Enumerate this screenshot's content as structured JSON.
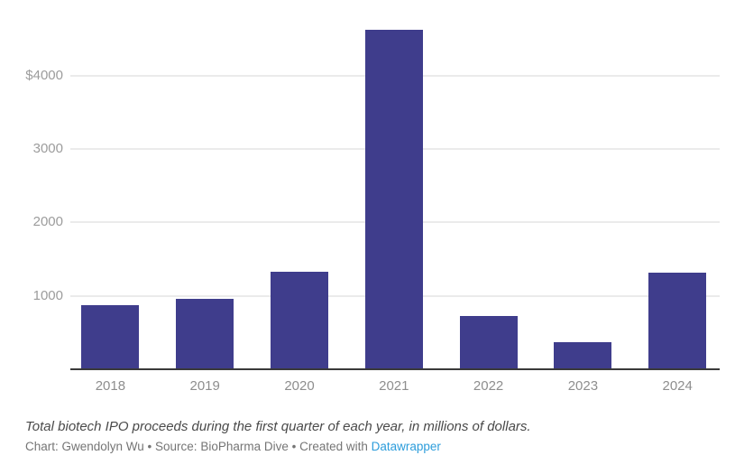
{
  "chart_data": {
    "type": "bar",
    "categories": [
      "2018",
      "2019",
      "2020",
      "2021",
      "2022",
      "2023",
      "2024"
    ],
    "values": [
      870,
      965,
      1325,
      4630,
      730,
      375,
      1315
    ],
    "title": "",
    "xlabel": "",
    "ylabel": "",
    "ylim": [
      0,
      4700
    ],
    "yticks": [
      {
        "v": 4000,
        "label": "$4000"
      },
      {
        "v": 3000,
        "label": "3000"
      },
      {
        "v": 2000,
        "label": "2000"
      },
      {
        "v": 1000,
        "label": "1000"
      }
    ],
    "grid": "horizontal",
    "legend": "none",
    "units": "millions of dollars"
  },
  "footer": {
    "caption": "Total biotech IPO proceeds during the first quarter of each year, in millions of dollars.",
    "byline_prefix": "Chart: Gwendolyn Wu • Source: BioPharma Dive • Created with ",
    "link_label": "Datawrapper"
  },
  "colors": {
    "bar": "#3f3d8c",
    "gridline": "#ebebeb",
    "axis_line": "#3a3a3a",
    "y_label": "#9c9c9c",
    "x_label": "#8e8e8e",
    "caption_text": "#4a4a4a",
    "byline_text": "#757575",
    "link_blue": "#2d9ddb"
  }
}
